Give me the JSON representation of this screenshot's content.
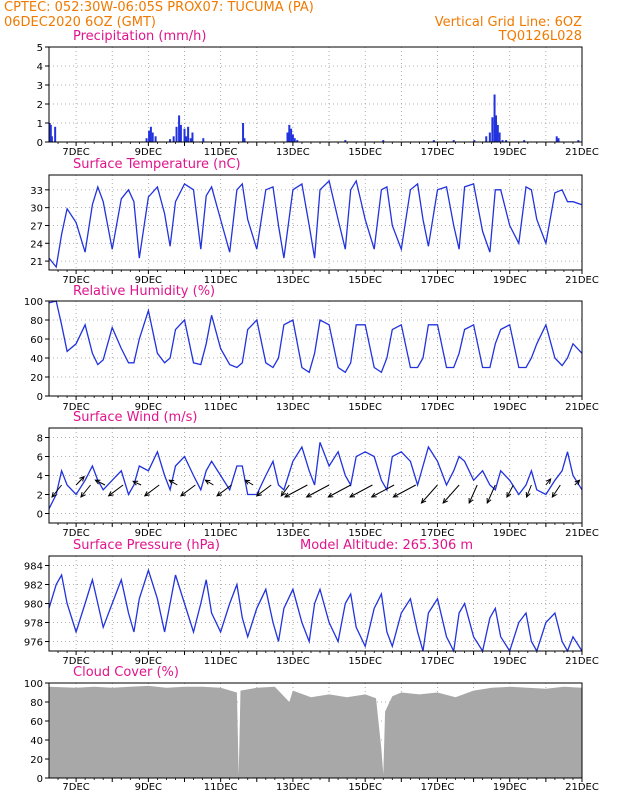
{
  "header": {
    "line1_left": "CPTEC:   052:30W-06:05S   PROX07: TUCUMA (PA)",
    "line2_left": "06DEC2020 6OZ (GMT)",
    "line2_right": "Vertical Grid Line: 6OZ",
    "line3_right": "TQ0126L028"
  },
  "colors": {
    "header": "#f07a00",
    "title": "#e0148c",
    "series": "#2233dd",
    "cloud": "#a8a8a8",
    "arrow": "#000000",
    "grid": "#999999"
  },
  "x_axis": {
    "labels": [
      "7DEC",
      "9DEC",
      "11DEC",
      "13DEC",
      "15DEC",
      "17DEC",
      "19DEC",
      "21DEC"
    ],
    "label_days": [
      7,
      9,
      11,
      13,
      15,
      17,
      19,
      21
    ],
    "start_day": 6.25,
    "end_day": 21
  },
  "chart_data": [
    {
      "type": "bar",
      "title": "Precipitation (mm/h)",
      "yticks": [
        0,
        1,
        2,
        3,
        4,
        5
      ],
      "ylim": [
        0,
        5
      ],
      "x": [
        6.27,
        6.3,
        6.33,
        6.42,
        8.95,
        9.02,
        9.07,
        9.12,
        9.2,
        9.6,
        9.7,
        9.78,
        9.85,
        9.9,
        10.0,
        10.05,
        10.1,
        10.17,
        10.22,
        10.52,
        11.62,
        11.66,
        12.85,
        12.9,
        12.95,
        13.0,
        13.05,
        13.12,
        14.45,
        15.5,
        16.9,
        17.45,
        18.02,
        18.35,
        18.45,
        18.52,
        18.58,
        18.62,
        18.67,
        18.72,
        18.8,
        18.9,
        19.4,
        20.3,
        20.35,
        20.9
      ],
      "values": [
        1.0,
        0.9,
        0.3,
        0.8,
        0.2,
        0.6,
        0.8,
        0.5,
        0.3,
        0.15,
        0.3,
        0.8,
        1.4,
        0.9,
        0.7,
        0.3,
        0.8,
        0.2,
        0.5,
        0.2,
        1.0,
        0.2,
        0.5,
        0.9,
        0.7,
        0.4,
        0.2,
        0.1,
        0.1,
        0.1,
        0.1,
        0.1,
        0.1,
        0.3,
        0.5,
        1.3,
        2.5,
        1.4,
        0.9,
        0.5,
        0.1,
        0.1,
        0.1,
        0.3,
        0.2,
        0.1
      ]
    },
    {
      "type": "line",
      "title": "Surface Temperature (nC)",
      "yticks": [
        21,
        24,
        27,
        30,
        33
      ],
      "ylim": [
        19.5,
        35.5
      ],
      "x": [
        6.25,
        6.45,
        6.6,
        6.75,
        7.0,
        7.25,
        7.45,
        7.6,
        7.75,
        8.0,
        8.25,
        8.45,
        8.6,
        8.75,
        9.0,
        9.25,
        9.45,
        9.6,
        9.75,
        10.0,
        10.25,
        10.45,
        10.6,
        10.75,
        11.0,
        11.25,
        11.45,
        11.6,
        11.75,
        12.0,
        12.25,
        12.45,
        12.6,
        12.75,
        13.0,
        13.25,
        13.45,
        13.6,
        13.75,
        14.0,
        14.25,
        14.45,
        14.6,
        14.75,
        15.0,
        15.25,
        15.45,
        15.6,
        15.75,
        16.0,
        16.25,
        16.45,
        16.6,
        16.75,
        17.0,
        17.25,
        17.45,
        17.6,
        17.75,
        18.0,
        18.25,
        18.45,
        18.6,
        18.75,
        19.0,
        19.25,
        19.45,
        19.6,
        19.75,
        20.0,
        20.25,
        20.45,
        20.6,
        20.75,
        21.0
      ],
      "values": [
        21.5,
        20.0,
        25.5,
        29.8,
        27.5,
        22.5,
        30.5,
        33.5,
        31.0,
        23.0,
        31.5,
        33.0,
        31.0,
        21.5,
        31.8,
        33.5,
        29.0,
        23.5,
        31.0,
        34.0,
        33.0,
        23.0,
        32.0,
        33.5,
        28.0,
        22.5,
        33.0,
        34.0,
        28.0,
        23.0,
        33.0,
        33.5,
        27.0,
        21.5,
        33.0,
        34.0,
        27.0,
        21.5,
        33.0,
        34.5,
        28.0,
        23.0,
        33.0,
        34.5,
        28.0,
        23.0,
        33.0,
        33.5,
        27.0,
        23.0,
        33.0,
        34.0,
        28.0,
        23.5,
        33.0,
        33.5,
        27.0,
        23.0,
        33.5,
        34.0,
        26.0,
        22.5,
        33.0,
        33.0,
        27.0,
        24.0,
        33.5,
        33.0,
        28.0,
        24.0,
        32.5,
        33.0,
        31.0,
        31.0,
        30.5
      ]
    },
    {
      "type": "line",
      "title": "Relative Humidity (%)",
      "yticks": [
        0,
        20,
        40,
        60,
        80,
        100
      ],
      "ylim": [
        0,
        100
      ],
      "x": [
        6.25,
        6.45,
        6.6,
        6.75,
        7.0,
        7.25,
        7.45,
        7.6,
        7.75,
        8.0,
        8.25,
        8.45,
        8.6,
        8.75,
        9.0,
        9.25,
        9.45,
        9.6,
        9.75,
        10.0,
        10.25,
        10.45,
        10.6,
        10.75,
        11.0,
        11.25,
        11.45,
        11.6,
        11.75,
        12.0,
        12.25,
        12.45,
        12.6,
        12.75,
        13.0,
        13.25,
        13.45,
        13.6,
        13.75,
        14.0,
        14.25,
        14.45,
        14.6,
        14.75,
        15.0,
        15.25,
        15.45,
        15.6,
        15.75,
        16.0,
        16.25,
        16.45,
        16.6,
        16.75,
        17.0,
        17.25,
        17.45,
        17.6,
        17.75,
        18.0,
        18.25,
        18.45,
        18.6,
        18.75,
        19.0,
        19.25,
        19.45,
        19.6,
        19.75,
        20.0,
        20.25,
        20.45,
        20.6,
        20.75,
        21.0
      ],
      "values": [
        98,
        100,
        75,
        47,
        55,
        75,
        45,
        33,
        38,
        72,
        50,
        35,
        35,
        60,
        90,
        45,
        35,
        40,
        70,
        80,
        35,
        33,
        55,
        85,
        50,
        33,
        30,
        35,
        70,
        80,
        35,
        30,
        40,
        75,
        80,
        30,
        25,
        45,
        80,
        75,
        30,
        25,
        35,
        75,
        75,
        30,
        25,
        40,
        70,
        75,
        30,
        30,
        40,
        75,
        75,
        30,
        30,
        45,
        70,
        75,
        30,
        30,
        55,
        70,
        75,
        30,
        30,
        40,
        55,
        75,
        40,
        32,
        40,
        55,
        45
      ]
    },
    {
      "type": "line",
      "title": "Surface Wind (m/s)",
      "yticks": [
        0,
        2,
        4,
        6,
        8
      ],
      "ylim": [
        -1,
        9
      ],
      "x": [
        6.25,
        6.45,
        6.6,
        6.75,
        7.0,
        7.25,
        7.45,
        7.6,
        7.75,
        8.0,
        8.25,
        8.45,
        8.6,
        8.75,
        9.0,
        9.25,
        9.45,
        9.6,
        9.75,
        10.0,
        10.25,
        10.45,
        10.6,
        10.75,
        11.0,
        11.25,
        11.45,
        11.6,
        11.75,
        12.0,
        12.25,
        12.45,
        12.6,
        12.75,
        13.0,
        13.25,
        13.45,
        13.6,
        13.75,
        14.0,
        14.25,
        14.45,
        14.6,
        14.75,
        15.0,
        15.25,
        15.45,
        15.6,
        15.75,
        16.0,
        16.25,
        16.45,
        16.6,
        16.75,
        17.0,
        17.25,
        17.45,
        17.6,
        17.75,
        18.0,
        18.25,
        18.45,
        18.6,
        18.75,
        19.0,
        19.25,
        19.45,
        19.6,
        19.75,
        20.0,
        20.25,
        20.45,
        20.6,
        20.75,
        21.0
      ],
      "values": [
        0.5,
        2.0,
        4.5,
        3.0,
        2.0,
        3.5,
        5.0,
        3.5,
        2.5,
        3.5,
        4.5,
        2.0,
        3.0,
        5.0,
        4.5,
        6.5,
        4.0,
        2.5,
        5.0,
        6.0,
        4.0,
        2.5,
        4.5,
        5.5,
        4.0,
        2.5,
        5.0,
        5.0,
        2.0,
        2.0,
        4.0,
        5.5,
        3.0,
        2.5,
        5.5,
        7.0,
        4.5,
        3.0,
        7.5,
        5.0,
        6.5,
        4.0,
        3.0,
        6.0,
        6.5,
        6.0,
        3.5,
        2.5,
        6.0,
        6.5,
        5.5,
        3.0,
        5.0,
        7.0,
        5.5,
        3.0,
        4.5,
        6.0,
        5.5,
        3.5,
        4.5,
        3.0,
        2.5,
        4.5,
        3.5,
        2.0,
        3.0,
        4.5,
        2.5,
        2.0,
        3.5,
        4.5,
        6.5,
        4.0,
        2.5
      ],
      "vectors": [
        {
          "x": 6.6,
          "dx": -0.6,
          "dy": -1.0
        },
        {
          "x": 7.0,
          "dx": 0.5,
          "dy": 0.7
        },
        {
          "x": 7.4,
          "dx": -0.6,
          "dy": -1.0
        },
        {
          "x": 7.8,
          "dx": -0.6,
          "dy": 0.4
        },
        {
          "x": 8.3,
          "dx": -0.9,
          "dy": -0.9
        },
        {
          "x": 8.8,
          "dx": -0.5,
          "dy": 0.3
        },
        {
          "x": 9.3,
          "dx": -0.9,
          "dy": -0.9
        },
        {
          "x": 9.8,
          "dx": -0.5,
          "dy": 0.4
        },
        {
          "x": 10.3,
          "dx": -0.9,
          "dy": -0.9
        },
        {
          "x": 10.8,
          "dx": -0.5,
          "dy": 0.4
        },
        {
          "x": 11.3,
          "dx": -0.9,
          "dy": -0.9
        },
        {
          "x": 11.9,
          "dx": -0.5,
          "dy": 0.4
        },
        {
          "x": 12.4,
          "dx": -0.9,
          "dy": -0.9
        },
        {
          "x": 12.9,
          "dx": -0.5,
          "dy": -0.9
        },
        {
          "x": 13.4,
          "dx": -1.4,
          "dy": -1.0
        },
        {
          "x": 14.0,
          "dx": -1.4,
          "dy": -1.0
        },
        {
          "x": 14.6,
          "dx": -1.4,
          "dy": -1.0
        },
        {
          "x": 15.2,
          "dx": -1.4,
          "dy": -1.0
        },
        {
          "x": 15.8,
          "dx": -1.4,
          "dy": -1.0
        },
        {
          "x": 16.4,
          "dx": -1.4,
          "dy": -1.0
        },
        {
          "x": 17.0,
          "dx": -1.0,
          "dy": -1.5
        },
        {
          "x": 17.6,
          "dx": -1.0,
          "dy": -1.5
        },
        {
          "x": 18.1,
          "dx": -0.5,
          "dy": -1.5
        },
        {
          "x": 18.6,
          "dx": -0.5,
          "dy": -1.5
        },
        {
          "x": 19.1,
          "dx": -0.4,
          "dy": -1.0
        },
        {
          "x": 19.6,
          "dx": -0.3,
          "dy": -1.0
        },
        {
          "x": 20.0,
          "dx": 0.3,
          "dy": 0.5
        },
        {
          "x": 20.4,
          "dx": -0.5,
          "dy": -1.0
        },
        {
          "x": 20.8,
          "dx": 0.3,
          "dy": 0.4
        }
      ]
    },
    {
      "type": "line",
      "title": "Surface Pressure (hPa)",
      "subtitle": "Model Altitude: 265.306 m",
      "yticks": [
        976,
        978,
        980,
        982,
        984
      ],
      "ylim": [
        975,
        985
      ],
      "x": [
        6.25,
        6.45,
        6.6,
        6.75,
        7.0,
        7.25,
        7.45,
        7.6,
        7.75,
        8.0,
        8.25,
        8.45,
        8.6,
        8.75,
        9.0,
        9.25,
        9.45,
        9.6,
        9.75,
        10.0,
        10.25,
        10.45,
        10.6,
        10.75,
        11.0,
        11.25,
        11.45,
        11.6,
        11.75,
        12.0,
        12.25,
        12.45,
        12.6,
        12.75,
        13.0,
        13.25,
        13.45,
        13.6,
        13.75,
        14.0,
        14.25,
        14.45,
        14.6,
        14.75,
        15.0,
        15.25,
        15.45,
        15.6,
        15.75,
        16.0,
        16.25,
        16.45,
        16.6,
        16.75,
        17.0,
        17.25,
        17.45,
        17.6,
        17.75,
        18.0,
        18.25,
        18.45,
        18.6,
        18.75,
        19.0,
        19.25,
        19.45,
        19.6,
        19.75,
        20.0,
        20.25,
        20.45,
        20.6,
        20.75,
        21.0
      ],
      "values": [
        979.5,
        982.0,
        983.0,
        980.0,
        977.0,
        980.0,
        982.5,
        980.0,
        977.5,
        980.0,
        982.5,
        979.0,
        977.0,
        980.5,
        983.5,
        980.5,
        977.0,
        980.0,
        983.0,
        980.0,
        977.0,
        980.0,
        982.5,
        979.0,
        977.0,
        980.0,
        982.0,
        978.5,
        976.5,
        979.5,
        981.5,
        978.0,
        976.0,
        979.5,
        981.5,
        978.0,
        976.0,
        980.0,
        981.5,
        978.0,
        976.0,
        980.0,
        981.0,
        977.5,
        975.5,
        979.5,
        981.0,
        977.0,
        975.5,
        979.0,
        980.5,
        977.0,
        975.0,
        979.0,
        980.5,
        976.5,
        975.0,
        979.0,
        980.0,
        976.5,
        975.0,
        978.5,
        979.5,
        976.5,
        975.0,
        978.0,
        979.0,
        976.0,
        975.0,
        978.0,
        979.0,
        976.0,
        975.0,
        976.5,
        975.0
      ]
    },
    {
      "type": "area",
      "title": "Cloud Cover (%)",
      "yticks": [
        0,
        20,
        40,
        60,
        80,
        100
      ],
      "ylim": [
        0,
        100
      ],
      "x": [
        6.25,
        7.0,
        7.5,
        8.0,
        8.5,
        9.0,
        9.5,
        10.0,
        10.5,
        11.0,
        11.45,
        11.5,
        11.55,
        12.0,
        12.5,
        12.9,
        13.0,
        13.5,
        14.0,
        14.5,
        15.0,
        15.3,
        15.45,
        15.5,
        15.55,
        15.75,
        16.0,
        16.5,
        17.0,
        17.5,
        18.0,
        18.5,
        19.0,
        19.5,
        20.0,
        20.5,
        21.0
      ],
      "values": [
        96,
        95,
        96,
        95,
        96,
        97,
        95,
        96,
        96,
        95,
        90,
        3,
        92,
        95,
        96,
        80,
        92,
        85,
        88,
        85,
        88,
        84,
        30,
        4,
        70,
        86,
        90,
        88,
        90,
        85,
        92,
        95,
        96,
        95,
        94,
        96,
        95
      ]
    }
  ]
}
